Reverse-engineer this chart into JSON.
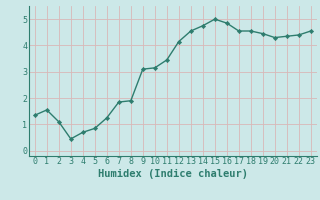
{
  "x": [
    0,
    1,
    2,
    3,
    4,
    5,
    6,
    7,
    8,
    9,
    10,
    11,
    12,
    13,
    14,
    15,
    16,
    17,
    18,
    19,
    20,
    21,
    22,
    23
  ],
  "y": [
    1.35,
    1.55,
    1.1,
    0.45,
    0.7,
    0.85,
    1.25,
    1.85,
    1.9,
    3.1,
    3.15,
    3.45,
    4.15,
    4.55,
    4.75,
    5.0,
    4.85,
    4.55,
    4.55,
    4.45,
    4.3,
    4.35,
    4.4,
    4.55
  ],
  "line_color": "#2e7d6e",
  "marker": "D",
  "marker_size": 2.2,
  "bg_color": "#cce8e8",
  "grid_color": "#d9b8b8",
  "xlabel": "Humidex (Indice chaleur)",
  "ylabel": "",
  "ylim": [
    -0.2,
    5.5
  ],
  "xlim": [
    -0.5,
    23.5
  ],
  "yticks": [
    0,
    1,
    2,
    3,
    4,
    5
  ],
  "xticks": [
    0,
    1,
    2,
    3,
    4,
    5,
    6,
    7,
    8,
    9,
    10,
    11,
    12,
    13,
    14,
    15,
    16,
    17,
    18,
    19,
    20,
    21,
    22,
    23
  ],
  "tick_label_color": "#2e7d6e",
  "tick_label_size": 6,
  "xlabel_size": 7.5,
  "xlabel_color": "#2e7d6e",
  "line_width": 1.0
}
